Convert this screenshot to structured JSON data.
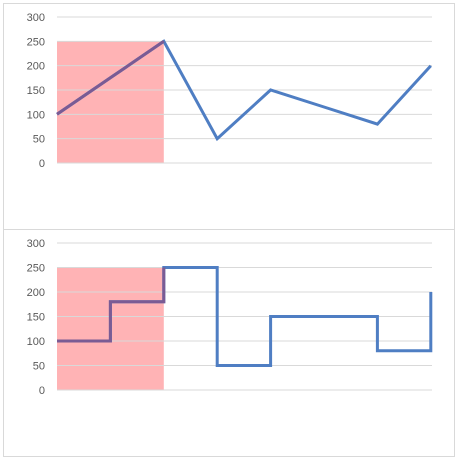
{
  "chart_data": [
    {
      "type": "line",
      "title": "",
      "xlabel": "",
      "ylabel": "",
      "ylim": [
        0,
        300
      ],
      "yticks": [
        "300",
        "250",
        "200",
        "150",
        "100",
        "50",
        "0"
      ],
      "grid": true,
      "legend": "none",
      "series": [
        {
          "x": [
            0,
            1,
            2,
            3,
            4,
            5,
            6,
            7
          ],
          "values": [
            100,
            175,
            250,
            50,
            150,
            115,
            80,
            200
          ]
        }
      ],
      "highlight": {
        "x_range": [
          0,
          2
        ],
        "y_range": [
          0,
          250
        ]
      },
      "colors": {
        "line": "#4f7ec3",
        "line_in_highlight": "#7a5b94",
        "highlight_fill": "#ffb3b5",
        "grid": "#d9d9d9"
      }
    },
    {
      "type": "line",
      "step": "post",
      "title": "",
      "xlabel": "",
      "ylabel": "",
      "ylim": [
        0,
        300
      ],
      "yticks": [
        "300",
        "250",
        "200",
        "150",
        "100",
        "50",
        "0"
      ],
      "grid": true,
      "legend": "none",
      "series": [
        {
          "x": [
            0,
            1,
            2,
            3,
            4,
            5,
            6,
            7
          ],
          "values": [
            100,
            180,
            250,
            50,
            150,
            150,
            80,
            200
          ]
        }
      ],
      "highlight": {
        "x_range": [
          0,
          2
        ],
        "y_range": [
          0,
          250
        ]
      },
      "colors": {
        "line": "#4f7ec3",
        "line_in_highlight": "#7a5b94",
        "highlight_fill": "#ffb3b5",
        "grid": "#d9d9d9"
      }
    }
  ]
}
